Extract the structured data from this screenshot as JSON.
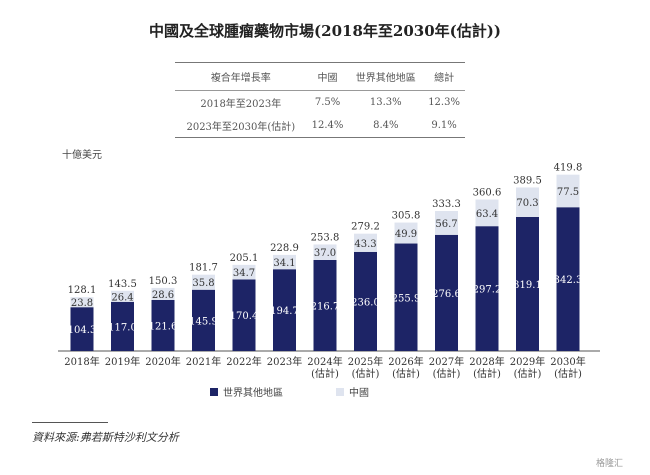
{
  "title": "中國及全球腫瘤藥物市場(2018年至2030年(估計))",
  "cagr_table": {
    "headers": [
      "複合年增長率",
      "中國",
      "世界其他地區",
      "總計"
    ],
    "rows": [
      [
        "2018年至2023年",
        "7.5%",
        "13.3%",
        "12.3%"
      ],
      [
        "2023年至2030年(估計)",
        "12.4%",
        "8.4%",
        "9.1%"
      ]
    ]
  },
  "chart_data": {
    "type": "bar",
    "stacked": true,
    "ylabel": "十億美元",
    "categories": [
      "2018年",
      "2019年",
      "2020年",
      "2021年",
      "2022年",
      "2023年",
      "2024年\n(估計)",
      "2025年\n(估計)",
      "2026年\n(估計)",
      "2027年\n(估計)",
      "2028年\n(估計)",
      "2029年\n(估計)",
      "2030年\n(估計)"
    ],
    "series": [
      {
        "name": "世界其他地區",
        "color": "#1d2466",
        "values": [
          104.3,
          117.0,
          121.6,
          145.9,
          170.4,
          194.7,
          216.7,
          236.0,
          255.9,
          276.6,
          297.2,
          319.1,
          342.3
        ]
      },
      {
        "name": "中國",
        "color": "#dfe4ef",
        "values": [
          23.8,
          26.4,
          28.6,
          35.8,
          34.7,
          34.1,
          37.0,
          43.3,
          49.9,
          56.7,
          63.4,
          70.3,
          77.5
        ]
      }
    ],
    "totals": [
      128.1,
      143.5,
      150.3,
      181.7,
      205.1,
      228.9,
      253.8,
      279.2,
      305.8,
      333.3,
      360.6,
      389.5,
      419.8
    ],
    "legend_position": "bottom",
    "grid": false
  },
  "source": "資料來源:弗若斯特沙利文分析",
  "watermark": "格隆汇"
}
